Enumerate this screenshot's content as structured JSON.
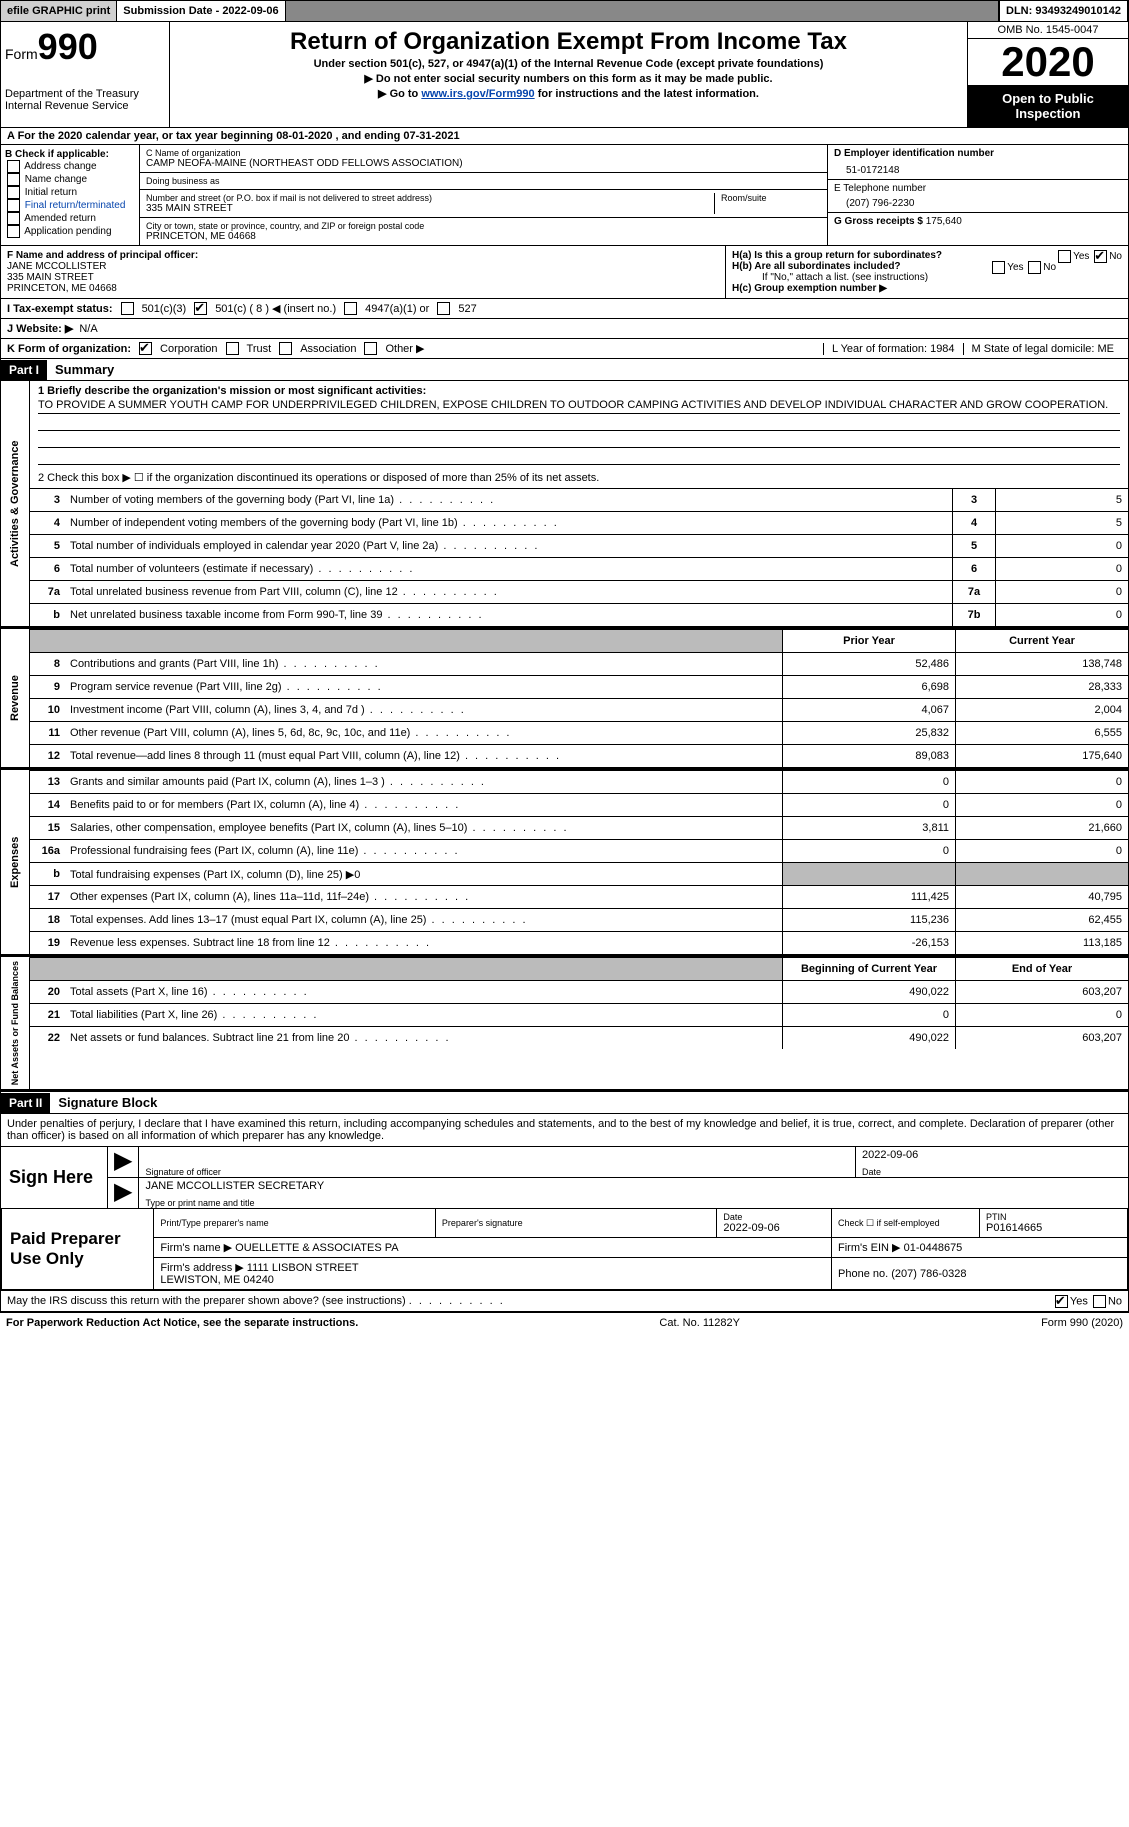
{
  "topbar": {
    "efile": "efile GRAPHIC print",
    "submission": "Submission Date - 2022-09-06",
    "dln": "DLN: 93493249010142"
  },
  "header": {
    "form_label": "Form",
    "form_num": "990",
    "dept": "Department of the Treasury\nInternal Revenue Service",
    "title": "Return of Organization Exempt From Income Tax",
    "sub": "Under section 501(c), 527, or 4947(a)(1) of the Internal Revenue Code (except private foundations)",
    "line1": "▶ Do not enter social security numbers on this form as it may be made public.",
    "line2_pre": "▶ Go to ",
    "line2_link": "www.irs.gov/Form990",
    "line2_post": " for instructions and the latest information.",
    "omb": "OMB No. 1545-0047",
    "year": "2020",
    "inspection": "Open to Public Inspection"
  },
  "lineA": "A For the 2020 calendar year, or tax year beginning 08-01-2020   , and ending 07-31-2021",
  "sectionB": {
    "title": "B Check if applicable:",
    "items": [
      "Address change",
      "Name change",
      "Initial return",
      "Final return/terminated",
      "Amended return",
      "Application pending"
    ]
  },
  "sectionC": {
    "name_hint": "C Name of organization",
    "name": "CAMP NEOFA-MAINE (NORTHEAST ODD FELLOWS ASSOCIATION)",
    "dba_hint": "Doing business as",
    "dba": "",
    "street_hint": "Number and street (or P.O. box if mail is not delivered to street address)",
    "room_hint": "Room/suite",
    "street": "335 MAIN STREET",
    "city_hint": "City or town, state or province, country, and ZIP or foreign postal code",
    "city": "PRINCETON, ME  04668"
  },
  "sectionD": {
    "label": "D Employer identification number",
    "value": "51-0172148"
  },
  "sectionE": {
    "label": "E Telephone number",
    "value": "(207) 796-2230"
  },
  "sectionG": {
    "label": "G Gross receipts $",
    "value": "175,640"
  },
  "sectionF": {
    "label": "F Name and address of principal officer:",
    "name": "JANE MCCOLLISTER",
    "street": "335 MAIN STREET",
    "city": "PRINCETON, ME  04668"
  },
  "sectionH": {
    "ha": "H(a)  Is this a group return for subordinates?",
    "ha_yes": "Yes",
    "ha_no": "No",
    "hb": "H(b)  Are all subordinates included?",
    "hb_note": "If \"No,\" attach a list. (see instructions)",
    "hc": "H(c)  Group exemption number ▶"
  },
  "lineI": {
    "label": "I   Tax-exempt status:",
    "o1": "501(c)(3)",
    "o2": "501(c) ( 8 ) ◀ (insert no.)",
    "o3": "4947(a)(1) or",
    "o4": "527"
  },
  "lineJ": {
    "label": "J   Website: ▶",
    "value": "N/A"
  },
  "lineK": {
    "label": "K Form of organization:",
    "o1": "Corporation",
    "o2": "Trust",
    "o3": "Association",
    "o4": "Other ▶",
    "L": "L Year of formation: 1984",
    "M": "M State of legal domicile: ME"
  },
  "part1": {
    "header": "Part I",
    "title": "Summary",
    "q1": "1  Briefly describe the organization's mission or most significant activities:",
    "mission": "TO PROVIDE A SUMMER YOUTH CAMP FOR UNDERPRIVILEGED CHILDREN, EXPOSE CHILDREN TO OUTDOOR CAMPING ACTIVITIES AND DEVELOP INDIVIDUAL CHARACTER AND GROW COOPERATION.",
    "q2": "2   Check this box ▶ ☐  if the organization discontinued its operations or disposed of more than 25% of its net assets.",
    "governance_label": "Activities & Governance",
    "revenue_label": "Revenue",
    "expenses_label": "Expenses",
    "netassets_label": "Net Assets or Fund Balances",
    "rows_gov": [
      {
        "n": "3",
        "t": "Number of voting members of the governing body (Part VI, line 1a)",
        "box": "3",
        "v": "5"
      },
      {
        "n": "4",
        "t": "Number of independent voting members of the governing body (Part VI, line 1b)",
        "box": "4",
        "v": "5"
      },
      {
        "n": "5",
        "t": "Total number of individuals employed in calendar year 2020 (Part V, line 2a)",
        "box": "5",
        "v": "0"
      },
      {
        "n": "6",
        "t": "Total number of volunteers (estimate if necessary)",
        "box": "6",
        "v": "0"
      },
      {
        "n": "7a",
        "t": "Total unrelated business revenue from Part VIII, column (C), line 12",
        "box": "7a",
        "v": "0"
      },
      {
        "n": "b",
        "t": "Net unrelated business taxable income from Form 990-T, line 39",
        "box": "7b",
        "v": "0"
      }
    ],
    "col_prior": "Prior Year",
    "col_curr": "Current Year",
    "rows_rev": [
      {
        "n": "8",
        "t": "Contributions and grants (Part VIII, line 1h)",
        "p": "52,486",
        "c": "138,748"
      },
      {
        "n": "9",
        "t": "Program service revenue (Part VIII, line 2g)",
        "p": "6,698",
        "c": "28,333"
      },
      {
        "n": "10",
        "t": "Investment income (Part VIII, column (A), lines 3, 4, and 7d )",
        "p": "4,067",
        "c": "2,004"
      },
      {
        "n": "11",
        "t": "Other revenue (Part VIII, column (A), lines 5, 6d, 8c, 9c, 10c, and 11e)",
        "p": "25,832",
        "c": "6,555"
      },
      {
        "n": "12",
        "t": "Total revenue—add lines 8 through 11 (must equal Part VIII, column (A), line 12)",
        "p": "89,083",
        "c": "175,640"
      }
    ],
    "rows_exp": [
      {
        "n": "13",
        "t": "Grants and similar amounts paid (Part IX, column (A), lines 1–3 )",
        "p": "0",
        "c": "0"
      },
      {
        "n": "14",
        "t": "Benefits paid to or for members (Part IX, column (A), line 4)",
        "p": "0",
        "c": "0"
      },
      {
        "n": "15",
        "t": "Salaries, other compensation, employee benefits (Part IX, column (A), lines 5–10)",
        "p": "3,811",
        "c": "21,660"
      },
      {
        "n": "16a",
        "t": "Professional fundraising fees (Part IX, column (A), line 11e)",
        "p": "0",
        "c": "0"
      },
      {
        "n": "b",
        "t": "Total fundraising expenses (Part IX, column (D), line 25) ▶0",
        "p": "",
        "c": "",
        "shaded": true
      },
      {
        "n": "17",
        "t": "Other expenses (Part IX, column (A), lines 11a–11d, 11f–24e)",
        "p": "111,425",
        "c": "40,795"
      },
      {
        "n": "18",
        "t": "Total expenses. Add lines 13–17 (must equal Part IX, column (A), line 25)",
        "p": "115,236",
        "c": "62,455"
      },
      {
        "n": "19",
        "t": "Revenue less expenses. Subtract line 18 from line 12",
        "p": "-26,153",
        "c": "113,185"
      }
    ],
    "col_begin": "Beginning of Current Year",
    "col_end": "End of Year",
    "rows_net": [
      {
        "n": "20",
        "t": "Total assets (Part X, line 16)",
        "p": "490,022",
        "c": "603,207"
      },
      {
        "n": "21",
        "t": "Total liabilities (Part X, line 26)",
        "p": "0",
        "c": "0"
      },
      {
        "n": "22",
        "t": "Net assets or fund balances. Subtract line 21 from line 20",
        "p": "490,022",
        "c": "603,207"
      }
    ]
  },
  "part2": {
    "header": "Part II",
    "title": "Signature Block",
    "declaration": "Under penalties of perjury, I declare that I have examined this return, including accompanying schedules and statements, and to the best of my knowledge and belief, it is true, correct, and complete. Declaration of preparer (other than officer) is based on all information of which preparer has any knowledge.",
    "sign_here": "Sign Here",
    "sig_officer": "Signature of officer",
    "sig_date": "Date",
    "sig_date_val": "2022-09-06",
    "officer_name": "JANE MCCOLLISTER SECRETARY",
    "type_name": "Type or print name and title",
    "paid_label": "Paid Preparer Use Only",
    "prep_name_h": "Print/Type preparer's name",
    "prep_sig_h": "Preparer's signature",
    "prep_date_h": "Date",
    "prep_date": "2022-09-06",
    "prep_check": "Check ☐ if self-employed",
    "ptin_h": "PTIN",
    "ptin": "P01614665",
    "firm_name_h": "Firm's name    ▶",
    "firm_name": "OUELLETTE & ASSOCIATES PA",
    "firm_ein_h": "Firm's EIN ▶",
    "firm_ein": "01-0448675",
    "firm_addr_h": "Firm's address ▶",
    "firm_addr": "1111 LISBON STREET\nLEWISTON, ME  04240",
    "firm_phone_h": "Phone no.",
    "firm_phone": "(207) 786-0328",
    "discuss": "May the IRS discuss this return with the preparer shown above? (see instructions)",
    "yes": "Yes",
    "no": "No"
  },
  "footer": {
    "left": "For Paperwork Reduction Act Notice, see the separate instructions.",
    "mid": "Cat. No. 11282Y",
    "right": "Form 990 (2020)"
  }
}
